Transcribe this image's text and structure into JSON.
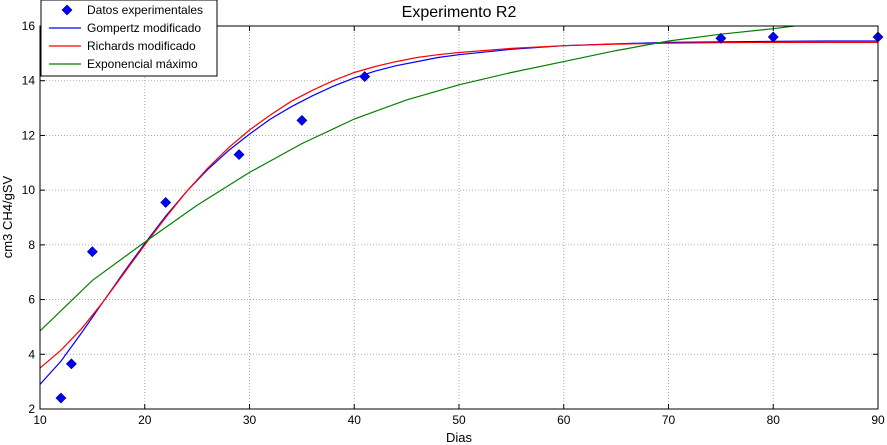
{
  "chart_data": {
    "type": "line",
    "title": "Experimento R2",
    "xlabel": "Dias",
    "ylabel": "cm3 CH4/gSV",
    "xlim": [
      10,
      90
    ],
    "ylim": [
      2,
      16
    ],
    "xticks": [
      10,
      20,
      30,
      40,
      50,
      60,
      70,
      80,
      90
    ],
    "yticks": [
      2,
      4,
      6,
      8,
      10,
      12,
      14,
      16
    ],
    "grid": true,
    "legend_position": "top-left",
    "series": [
      {
        "name": "Datos experimentales",
        "kind": "scatter",
        "marker": "diamond",
        "color": "#0000ff",
        "points": [
          [
            12,
            2.4
          ],
          [
            13,
            3.65
          ],
          [
            15,
            7.75
          ],
          [
            22,
            9.55
          ],
          [
            29,
            11.3
          ],
          [
            35,
            12.55
          ],
          [
            41,
            14.15
          ],
          [
            75,
            15.55
          ],
          [
            80,
            15.6
          ],
          [
            90,
            15.6
          ]
        ]
      },
      {
        "name": "Gompertz modificado",
        "kind": "line",
        "color": "#0000ff",
        "points": [
          [
            10,
            2.9
          ],
          [
            12,
            3.75
          ],
          [
            14,
            4.8
          ],
          [
            16,
            5.9
          ],
          [
            18,
            7.0
          ],
          [
            20,
            8.05
          ],
          [
            22,
            9.05
          ],
          [
            24,
            9.95
          ],
          [
            26,
            10.75
          ],
          [
            28,
            11.45
          ],
          [
            30,
            12.05
          ],
          [
            32,
            12.6
          ],
          [
            34,
            13.05
          ],
          [
            36,
            13.45
          ],
          [
            38,
            13.8
          ],
          [
            40,
            14.1
          ],
          [
            42,
            14.35
          ],
          [
            44,
            14.55
          ],
          [
            46,
            14.7
          ],
          [
            48,
            14.85
          ],
          [
            50,
            14.95
          ],
          [
            55,
            15.15
          ],
          [
            60,
            15.28
          ],
          [
            65,
            15.35
          ],
          [
            70,
            15.4
          ],
          [
            75,
            15.42
          ],
          [
            80,
            15.44
          ],
          [
            85,
            15.45
          ],
          [
            90,
            15.45
          ]
        ]
      },
      {
        "name": "Richards modificado",
        "kind": "line",
        "color": "#ff0000",
        "points": [
          [
            10,
            3.5
          ],
          [
            12,
            4.15
          ],
          [
            14,
            4.95
          ],
          [
            16,
            5.9
          ],
          [
            18,
            6.95
          ],
          [
            20,
            8.0
          ],
          [
            22,
            9.0
          ],
          [
            24,
            9.95
          ],
          [
            26,
            10.8
          ],
          [
            28,
            11.55
          ],
          [
            30,
            12.2
          ],
          [
            32,
            12.75
          ],
          [
            34,
            13.25
          ],
          [
            36,
            13.65
          ],
          [
            38,
            14.0
          ],
          [
            40,
            14.3
          ],
          [
            42,
            14.52
          ],
          [
            44,
            14.7
          ],
          [
            46,
            14.85
          ],
          [
            48,
            14.95
          ],
          [
            50,
            15.03
          ],
          [
            55,
            15.18
          ],
          [
            60,
            15.28
          ],
          [
            65,
            15.34
          ],
          [
            70,
            15.37
          ],
          [
            75,
            15.39
          ],
          [
            80,
            15.4
          ],
          [
            85,
            15.4
          ],
          [
            90,
            15.4
          ]
        ]
      },
      {
        "name": "Exponencial máximo",
        "kind": "line",
        "color": "#008000",
        "points": [
          [
            10,
            4.85
          ],
          [
            15,
            6.7
          ],
          [
            20,
            8.1
          ],
          [
            25,
            9.45
          ],
          [
            30,
            10.65
          ],
          [
            35,
            11.7
          ],
          [
            40,
            12.6
          ],
          [
            45,
            13.3
          ],
          [
            50,
            13.85
          ],
          [
            55,
            14.3
          ],
          [
            60,
            14.7
          ],
          [
            65,
            15.1
          ],
          [
            70,
            15.45
          ],
          [
            75,
            15.7
          ],
          [
            80,
            15.9
          ],
          [
            82,
            16.0
          ]
        ]
      }
    ]
  }
}
